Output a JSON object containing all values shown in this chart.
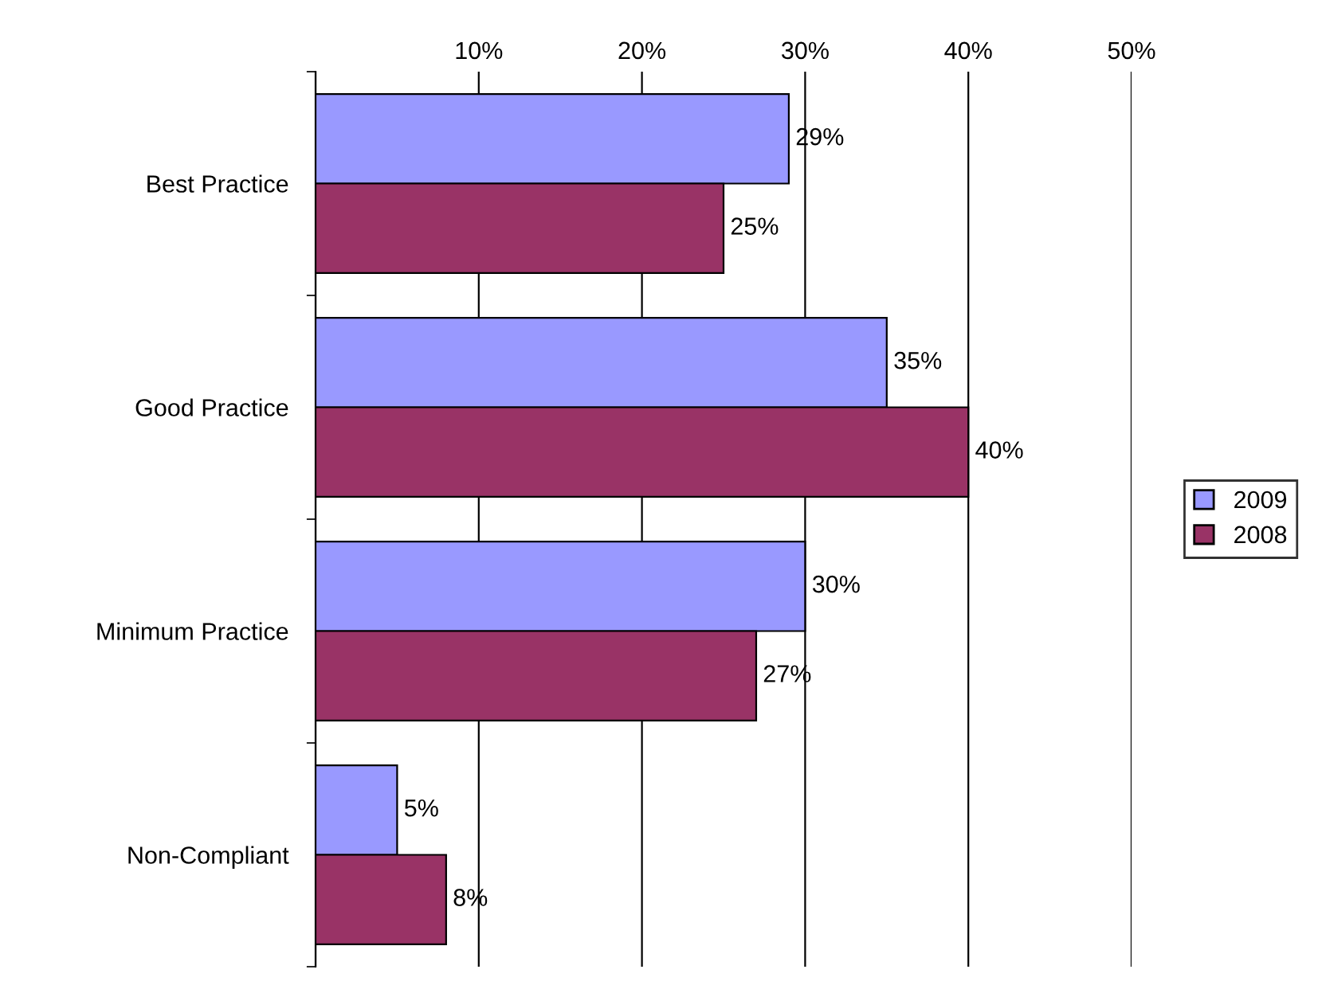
{
  "chart_data": {
    "type": "bar",
    "orientation": "horizontal",
    "categories": [
      "Best Practice",
      "Good Practice",
      "Minimum Practice",
      "Non-Compliant"
    ],
    "series": [
      {
        "name": "2009",
        "color": "#9999ff",
        "values": [
          29,
          35,
          30,
          5
        ],
        "value_labels": [
          "29%",
          "35%",
          "30%",
          "5%"
        ]
      },
      {
        "name": "2008",
        "color": "#993366",
        "values": [
          25,
          40,
          27,
          8
        ],
        "value_labels": [
          "25%",
          "40%",
          "27%",
          "8%"
        ]
      }
    ],
    "xlim": [
      0,
      50
    ],
    "xticks": [
      {
        "value": 0,
        "label": null
      },
      {
        "value": 10,
        "label": "10%"
      },
      {
        "value": 20,
        "label": "20%"
      },
      {
        "value": 30,
        "label": "30%"
      },
      {
        "value": 40,
        "label": "40%"
      },
      {
        "value": 50,
        "label": "50%"
      }
    ],
    "grid": "x",
    "legend": "right"
  }
}
